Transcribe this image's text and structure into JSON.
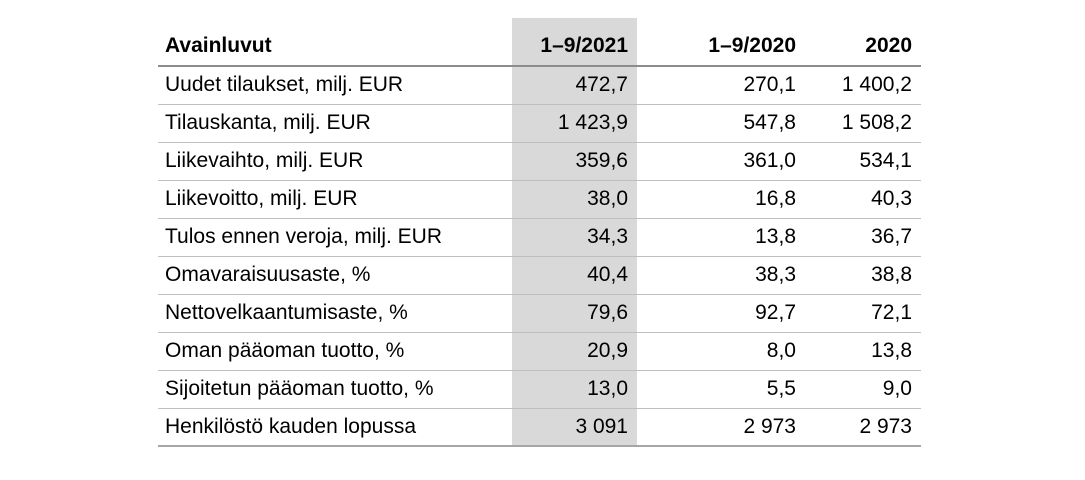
{
  "table": {
    "title": "Avainluvut",
    "columns": [
      "Avainluvut",
      "1–9/2021",
      "1–9/2020",
      "2020"
    ],
    "highlighted_column": "1–9/2021",
    "rows": [
      {
        "label": "Uudet tilaukset, milj. EUR",
        "values": [
          "472,7",
          "270,1",
          "1 400,2"
        ]
      },
      {
        "label": "Tilauskanta, milj. EUR",
        "values": [
          "1 423,9",
          "547,8",
          "1 508,2"
        ]
      },
      {
        "label": "Liikevaihto, milj. EUR",
        "values": [
          "359,6",
          "361,0",
          "534,1"
        ]
      },
      {
        "label": "Liikevoitto, milj. EUR",
        "values": [
          "38,0",
          "16,8",
          "40,3"
        ]
      },
      {
        "label": "Tulos ennen veroja, milj. EUR",
        "values": [
          "34,3",
          "13,8",
          "36,7"
        ]
      },
      {
        "label": "Omavaraisuusaste, %",
        "values": [
          "40,4",
          "38,3",
          "38,8"
        ]
      },
      {
        "label": "Nettovelkaantumisaste, %",
        "values": [
          "79,6",
          "92,7",
          "72,1"
        ]
      },
      {
        "label": "Oman pääoman tuotto, %",
        "values": [
          "20,9",
          "8,0",
          "13,8"
        ]
      },
      {
        "label": "Sijoitetun pääoman tuotto, %",
        "values": [
          "13,0",
          "5,5",
          "9,0"
        ]
      },
      {
        "label": "Henkilöstö kauden lopussa",
        "values": [
          "3 091",
          "2 973",
          "2 973"
        ]
      }
    ]
  },
  "colors": {
    "highlight": "#d9d9d9",
    "header-rule": "#8c8c8c",
    "row-rule": "#bfbfbf",
    "bottom-rule": "#a6a6a6",
    "text": "#000000"
  }
}
